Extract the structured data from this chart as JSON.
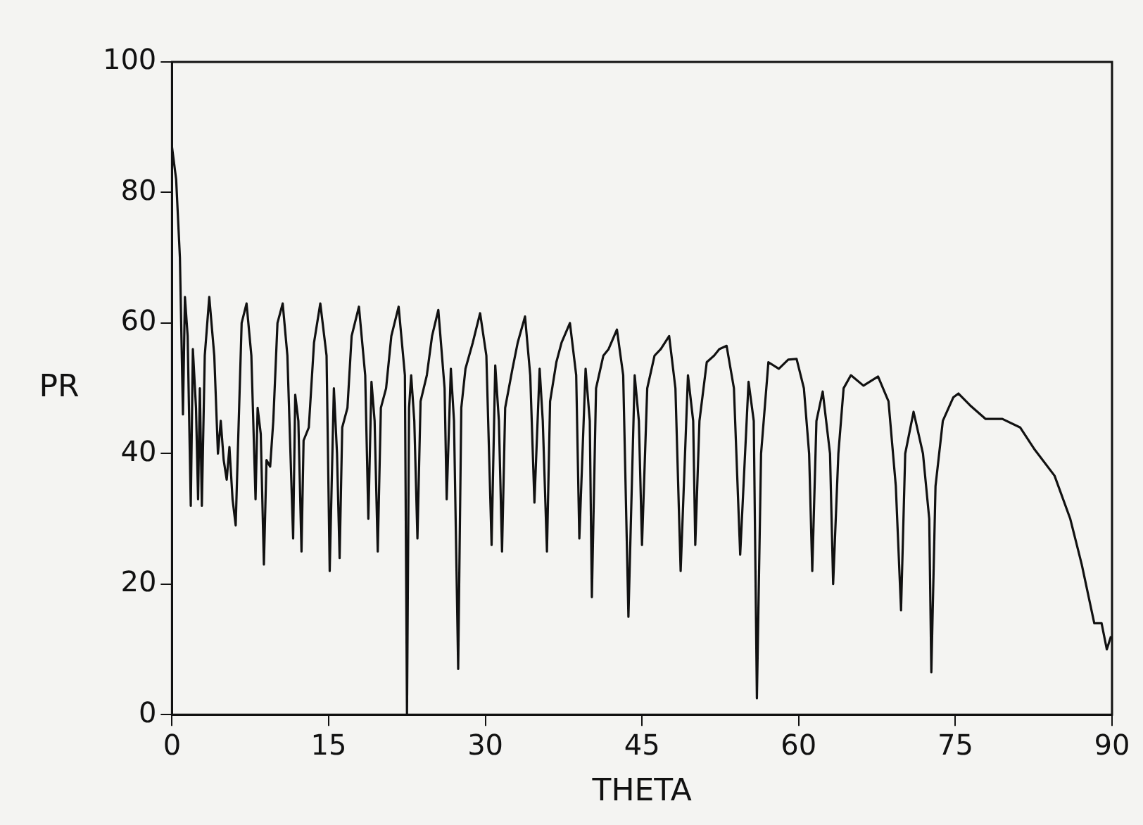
{
  "chart_data": {
    "type": "line",
    "xlabel": "THETA",
    "ylabel": "PR",
    "color": "#111111",
    "legend": false,
    "grid": false,
    "marker": "none",
    "line_style": "solid",
    "xlim": [
      0,
      90
    ],
    "xticks": [
      0,
      15,
      30,
      45,
      60,
      75,
      90
    ],
    "ylim": [
      0,
      100
    ],
    "yticks": [
      0,
      20,
      40,
      60,
      80,
      100
    ],
    "x": [
      0,
      0.4,
      0.76,
      1.05,
      1.24,
      1.5,
      1.8,
      2.0,
      2.3,
      2.5,
      2.67,
      2.86,
      3.14,
      3.57,
      4.05,
      4.4,
      4.67,
      4.95,
      5.24,
      5.5,
      5.8,
      6.1,
      6.3,
      6.67,
      7.14,
      7.6,
      8.0,
      8.2,
      8.5,
      8.8,
      9.05,
      9.4,
      9.7,
      10.1,
      10.6,
      11.05,
      11.6,
      11.8,
      12.1,
      12.4,
      12.6,
      13.1,
      13.6,
      14.2,
      14.8,
      15.1,
      15.5,
      15.8,
      16.05,
      16.3,
      16.8,
      17.2,
      17.9,
      18.5,
      18.8,
      19.1,
      19.4,
      19.7,
      20.0,
      20.5,
      21.0,
      21.7,
      22.3,
      22.5,
      22.7,
      22.9,
      23.2,
      23.5,
      23.8,
      24.4,
      24.9,
      25.5,
      26.1,
      26.3,
      26.7,
      27.0,
      27.4,
      27.7,
      28.1,
      28.8,
      29.5,
      30.1,
      30.6,
      30.95,
      31.3,
      31.6,
      31.9,
      32.6,
      33.1,
      33.8,
      34.3,
      34.7,
      35.2,
      35.5,
      35.9,
      36.2,
      36.8,
      37.3,
      38.1,
      38.7,
      39.0,
      39.6,
      40.0,
      40.2,
      40.6,
      41.3,
      41.8,
      42.6,
      43.2,
      43.7,
      44.3,
      44.7,
      45.0,
      45.5,
      46.2,
      46.8,
      47.6,
      48.2,
      48.7,
      49.4,
      49.9,
      50.1,
      50.5,
      51.2,
      51.9,
      52.4,
      53.1,
      53.8,
      54.4,
      55.2,
      55.7,
      56.0,
      56.4,
      57.1,
      58.1,
      59.0,
      59.8,
      60.5,
      61.0,
      61.3,
      61.7,
      62.3,
      63.0,
      63.3,
      63.8,
      64.3,
      65.0,
      66.2,
      67.6,
      68.6,
      69.3,
      69.8,
      70.2,
      71.0,
      71.9,
      72.5,
      72.7,
      73.1,
      73.8,
      74.8,
      75.3,
      76.4,
      77.9,
      79.5,
      81.2,
      82.6,
      84.5,
      86.0,
      87.1,
      88.3,
      89.0,
      89.5,
      89.9
    ],
    "values": [
      87,
      82,
      70,
      46,
      64,
      58,
      32,
      56,
      47,
      33,
      50,
      32,
      55,
      64,
      55,
      40,
      45,
      39,
      36,
      41,
      33,
      29,
      40,
      60,
      63,
      55,
      33,
      47,
      43,
      23,
      39,
      38,
      45,
      60,
      63,
      55,
      27,
      49,
      45,
      25,
      42,
      44,
      57,
      63,
      55,
      22,
      50,
      40,
      24,
      44,
      47,
      58,
      62.5,
      52,
      30,
      51,
      45,
      25,
      47,
      50,
      58,
      62.5,
      52,
      0,
      47,
      52,
      45,
      27,
      48,
      52,
      58,
      62,
      50,
      33,
      53,
      45,
      7,
      47,
      53,
      57,
      61.5,
      55,
      26,
      53.5,
      45,
      25,
      47,
      53,
      57,
      61,
      52,
      32.5,
      53,
      45,
      25,
      48,
      54,
      57,
      60,
      52,
      27,
      53,
      45,
      18,
      50,
      55,
      56,
      59,
      52,
      15,
      52,
      45,
      26,
      50,
      55,
      56,
      58,
      50,
      22,
      52,
      45,
      26,
      45,
      54,
      55,
      56,
      56.5,
      50,
      24.5,
      51,
      45,
      2.5,
      40,
      54,
      53,
      54.4,
      54.5,
      50,
      40,
      22,
      45,
      49.5,
      40,
      20,
      40,
      50,
      52,
      50.4,
      51.8,
      48,
      35,
      16,
      40,
      46.4,
      40,
      30,
      6.5,
      35,
      45,
      48.6,
      49.2,
      47.4,
      45.3,
      45.3,
      44,
      40.6,
      36.6,
      30,
      23,
      14,
      14,
      10,
      12
    ]
  }
}
